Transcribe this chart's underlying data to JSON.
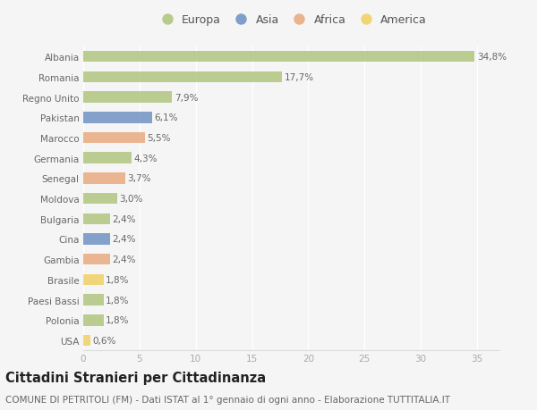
{
  "countries": [
    "Albania",
    "Romania",
    "Regno Unito",
    "Pakistan",
    "Marocco",
    "Germania",
    "Senegal",
    "Moldova",
    "Bulgaria",
    "Cina",
    "Gambia",
    "Brasile",
    "Paesi Bassi",
    "Polonia",
    "USA"
  ],
  "values": [
    34.8,
    17.7,
    7.9,
    6.1,
    5.5,
    4.3,
    3.7,
    3.0,
    2.4,
    2.4,
    2.4,
    1.8,
    1.8,
    1.8,
    0.6
  ],
  "labels": [
    "34,8%",
    "17,7%",
    "7,9%",
    "6,1%",
    "5,5%",
    "4,3%",
    "3,7%",
    "3,0%",
    "2,4%",
    "2,4%",
    "2,4%",
    "1,8%",
    "1,8%",
    "1,8%",
    "0,6%"
  ],
  "continent": [
    "Europa",
    "Europa",
    "Europa",
    "Asia",
    "Africa",
    "Europa",
    "Africa",
    "Europa",
    "Europa",
    "Asia",
    "Africa",
    "America",
    "Europa",
    "Europa",
    "America"
  ],
  "colors": {
    "Europa": "#adc47a",
    "Asia": "#6b8fc4",
    "Africa": "#e8a87c",
    "America": "#f0d060"
  },
  "legend_order": [
    "Europa",
    "Asia",
    "Africa",
    "America"
  ],
  "title": "Cittadini Stranieri per Cittadinanza",
  "subtitle": "COMUNE DI PETRITOLI (FM) - Dati ISTAT al 1° gennaio di ogni anno - Elaborazione TUTTITALIA.IT",
  "xlim": [
    0,
    37
  ],
  "xticks": [
    0,
    5,
    10,
    15,
    20,
    25,
    30,
    35
  ],
  "background_color": "#f5f5f5",
  "bar_height": 0.55,
  "label_fontsize": 7.5,
  "title_fontsize": 10.5,
  "subtitle_fontsize": 7.5,
  "tick_fontsize": 7.5,
  "legend_fontsize": 9,
  "ytick_fontsize": 7.5
}
